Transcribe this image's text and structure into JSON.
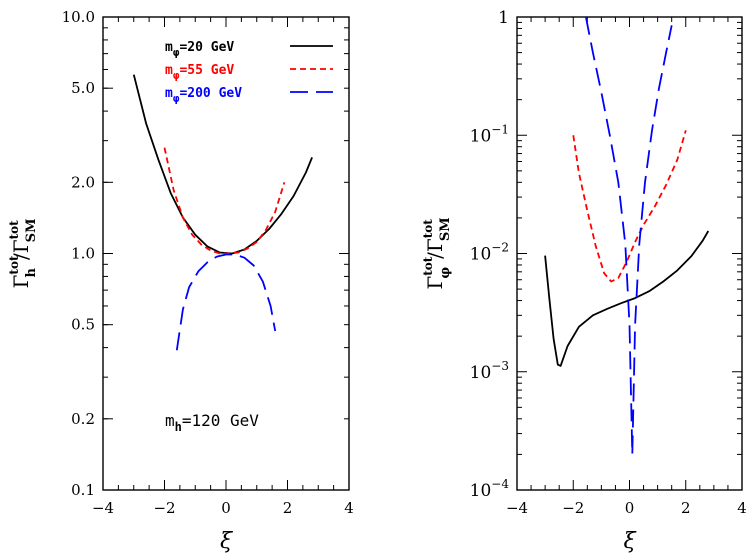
{
  "chart_data": [
    {
      "type": "line",
      "xlabel": "ξ",
      "ylabel": "Γ_h^tot / Γ_SM^tot",
      "ylabel_main": "Γ",
      "ylabel_sub1": "h",
      "ylabel_sup1": "tot",
      "ylabel_sep": "/Γ",
      "ylabel_sub2": "SM",
      "ylabel_sup2": "tot",
      "xlim": [
        -4,
        4
      ],
      "ylim": [
        0.1,
        10.0
      ],
      "yscale": "log",
      "xticks": [
        -4,
        -2,
        0,
        2,
        4
      ],
      "xtick_labels": [
        "−4",
        "−2",
        "0",
        "2",
        "4"
      ],
      "yticks": [
        0.1,
        0.2,
        0.5,
        1.0,
        2.0,
        5.0,
        10.0
      ],
      "ytick_labels": [
        "0.1",
        "0.2",
        "0.5",
        "1.0",
        "2.0",
        "5.0",
        "10.0"
      ],
      "annotation": {
        "main": "m",
        "sub": "h",
        "rest": "=120 GeV"
      },
      "legend": [
        {
          "main": "m",
          "sub": "φ",
          "rest": "=20 GeV",
          "color": "#000000",
          "dash": "solid"
        },
        {
          "main": "m",
          "sub": "φ",
          "rest": "=55 GeV",
          "color": "#ff0000",
          "dash": "short-dash"
        },
        {
          "main": "m",
          "sub": "φ",
          "rest": "=200 GeV",
          "color": "#0000ff",
          "dash": "long-dash"
        }
      ],
      "series": [
        {
          "color": "#000000",
          "dash": "solid",
          "x": [
            -3.0,
            -2.6,
            -2.2,
            -1.8,
            -1.4,
            -1.0,
            -0.6,
            -0.2,
            0.2,
            0.6,
            1.0,
            1.4,
            1.8,
            2.2,
            2.6,
            2.8
          ],
          "y": [
            5.7,
            3.55,
            2.5,
            1.8,
            1.42,
            1.2,
            1.07,
            1.01,
            1.0,
            1.04,
            1.13,
            1.27,
            1.47,
            1.75,
            2.2,
            2.55
          ]
        },
        {
          "color": "#ff0000",
          "dash": "short-dash",
          "x": [
            -2.0,
            -1.7,
            -1.4,
            -1.1,
            -0.8,
            -0.5,
            -0.2,
            0.1,
            0.4,
            0.7,
            1.0,
            1.3,
            1.6,
            1.9
          ],
          "y": [
            2.8,
            1.85,
            1.42,
            1.2,
            1.09,
            1.03,
            1.0,
            1.0,
            1.01,
            1.05,
            1.12,
            1.26,
            1.5,
            2.0
          ]
        },
        {
          "color": "#0000ff",
          "dash": "long-dash",
          "x": [
            -1.6,
            -1.4,
            -1.2,
            -0.9,
            -0.6,
            -0.3,
            0.0,
            0.3,
            0.6,
            0.9,
            1.2,
            1.45,
            1.6
          ],
          "y": [
            0.39,
            0.58,
            0.72,
            0.84,
            0.92,
            0.97,
            0.99,
            0.99,
            0.96,
            0.89,
            0.76,
            0.6,
            0.47
          ]
        }
      ]
    },
    {
      "type": "line",
      "xlabel": "ξ",
      "ylabel": "Γ_φ^tot / Γ_SM^tot",
      "ylabel_main": "Γ",
      "ylabel_sub1": "φ",
      "ylabel_sup1": "tot",
      "ylabel_sep": "/Γ",
      "ylabel_sub2": "SM",
      "ylabel_sup2": "tot",
      "xlim": [
        -4,
        4
      ],
      "ylim": [
        0.0001,
        1
      ],
      "yscale": "log",
      "xticks": [
        -4,
        -2,
        0,
        2,
        4
      ],
      "xtick_labels": [
        "−4",
        "−2",
        "0",
        "2",
        "4"
      ],
      "yticks": [
        0.0001,
        0.001,
        0.01,
        0.1,
        1
      ],
      "ytick_labels": [
        {
          "base": "10",
          "exp": "−4"
        },
        {
          "base": "10",
          "exp": "−3"
        },
        {
          "base": "10",
          "exp": "−2"
        },
        {
          "base": "10",
          "exp": "−1"
        },
        {
          "base": "1",
          "exp": ""
        }
      ],
      "series": [
        {
          "color": "#000000",
          "dash": "solid",
          "x": [
            -3.0,
            -2.85,
            -2.7,
            -2.55,
            -2.45,
            -2.2,
            -1.8,
            -1.3,
            -0.8,
            -0.3,
            0.2,
            0.7,
            1.2,
            1.7,
            2.2,
            2.6,
            2.8
          ],
          "y": [
            0.0096,
            0.0042,
            0.0019,
            0.00115,
            0.00112,
            0.00165,
            0.0024,
            0.003,
            0.0034,
            0.0038,
            0.0042,
            0.0048,
            0.0058,
            0.0072,
            0.0095,
            0.0128,
            0.0155
          ]
        },
        {
          "color": "#ff0000",
          "dash": "short-dash",
          "x": [
            -2.0,
            -1.8,
            -1.5,
            -1.2,
            -0.9,
            -0.65,
            -0.4,
            -0.1,
            0.2,
            0.5,
            0.9,
            1.3,
            1.7,
            2.0
          ],
          "y": [
            0.1,
            0.048,
            0.023,
            0.0115,
            0.0068,
            0.0058,
            0.0062,
            0.0085,
            0.0125,
            0.0175,
            0.025,
            0.038,
            0.062,
            0.11
          ]
        },
        {
          "color": "#0000ff",
          "dash": "long-dash",
          "x": [
            -1.55,
            -1.3,
            -1.0,
            -0.7,
            -0.4,
            -0.15,
            0.0,
            0.1,
            0.2,
            0.35,
            0.55,
            0.8,
            1.05,
            1.3,
            1.5
          ],
          "y": [
            1.0,
            0.5,
            0.23,
            0.1,
            0.04,
            0.012,
            0.0025,
            0.0002,
            0.0025,
            0.012,
            0.04,
            0.11,
            0.25,
            0.5,
            0.85
          ]
        }
      ]
    }
  ]
}
